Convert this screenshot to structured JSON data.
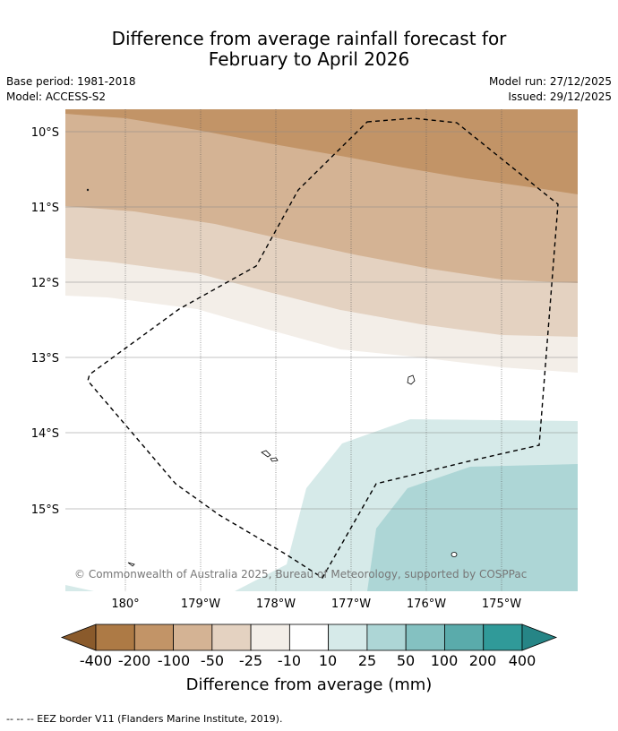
{
  "header": {
    "title_line1": "Difference from average rainfall forecast for",
    "title_line2": "February to April 2026",
    "base_period": "Base period: 1981-2018",
    "model": "Model: ACCESS-S2",
    "model_run": "Model run: 27/12/2025",
    "issued": "Issued: 29/12/2025"
  },
  "map": {
    "lat_labels": [
      "10°S",
      "11°S",
      "12°S",
      "13°S",
      "14°S",
      "15°S"
    ],
    "lon_labels": [
      "180°",
      "179°W",
      "178°W",
      "177°W",
      "176°W",
      "175°W"
    ],
    "copyright": "© Commonwealth of Australia 2025, Bureau of Meteorology, supported by COSPPac"
  },
  "colorbar": {
    "ticks": [
      "-400",
      "-200",
      "-100",
      "-50",
      "-25",
      "-10",
      "10",
      "25",
      "50",
      "100",
      "200",
      "400"
    ],
    "colors": [
      "#8a5a2b",
      "#ad7a45",
      "#c29467",
      "#d4b394",
      "#e4d2c1",
      "#f3eee8",
      "#ffffff",
      "#d6eae9",
      "#add6d6",
      "#84c1c1",
      "#5aabab",
      "#309a99",
      "#268586"
    ],
    "label": "Difference from average (mm)"
  },
  "footnote": "--  --  -- EEZ border V11 (Flanders Marine Institute, 2019)."
}
